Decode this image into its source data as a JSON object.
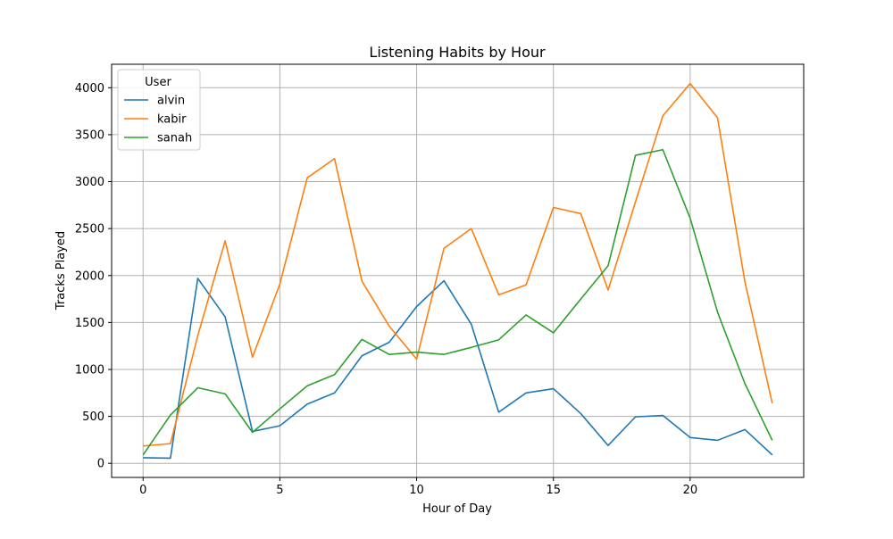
{
  "chart_data": {
    "type": "line",
    "title": "Listening Habits by Hour",
    "xlabel": "Hour of Day",
    "ylabel": "Tracks Played",
    "xlim": [
      -1.15,
      24.15
    ],
    "ylim": [
      -150,
      4250
    ],
    "xticks": [
      0,
      5,
      10,
      15,
      20
    ],
    "yticks": [
      0,
      500,
      1000,
      1500,
      2000,
      2500,
      3000,
      3500,
      4000
    ],
    "grid": true,
    "legend": {
      "title": "User",
      "placement": "top-left"
    },
    "x": [
      0,
      1,
      2,
      3,
      4,
      5,
      6,
      7,
      8,
      9,
      10,
      11,
      12,
      13,
      14,
      15,
      16,
      17,
      18,
      19,
      20,
      21,
      22,
      23
    ],
    "series": [
      {
        "name": "alvin",
        "color": "#1f77b4",
        "values": [
          60,
          55,
          1970,
          1560,
          340,
          400,
          630,
          750,
          1145,
          1290,
          1670,
          1945,
          1480,
          545,
          750,
          795,
          530,
          190,
          495,
          510,
          275,
          245,
          360,
          90
        ]
      },
      {
        "name": "kabir",
        "color": "#ff7f0e",
        "values": [
          185,
          210,
          1360,
          2370,
          1130,
          1910,
          3040,
          3245,
          1940,
          1460,
          1110,
          2290,
          2500,
          1795,
          1900,
          2725,
          2660,
          1845,
          2785,
          3700,
          4045,
          3680,
          1935,
          640
        ]
      },
      {
        "name": "sanah",
        "color": "#2ca02c",
        "values": [
          90,
          515,
          805,
          740,
          330,
          580,
          825,
          945,
          1320,
          1160,
          1185,
          1160,
          1235,
          1315,
          1580,
          1390,
          1750,
          2105,
          3280,
          3340,
          2610,
          1610,
          850,
          245
        ]
      }
    ]
  }
}
